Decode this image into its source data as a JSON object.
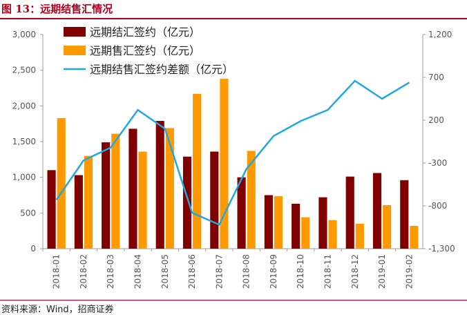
{
  "title": "图 13：远期结售汇情况",
  "source": "资料来源：Wind，招商证券",
  "chart_data": {
    "type": "bar",
    "categories": [
      "2018-01",
      "2018-02",
      "2018-03",
      "2018-04",
      "2018-05",
      "2018-06",
      "2018-07",
      "2018-08",
      "2018-09",
      "2018-10",
      "2018-11",
      "2018-12",
      "2019-01",
      "2019-02"
    ],
    "series": [
      {
        "name": "远期结汇签约（亿元）",
        "color": "#800000",
        "values": [
          1100,
          1030,
          1490,
          1680,
          1790,
          1290,
          1360,
          1000,
          750,
          630,
          720,
          1010,
          1060,
          960
        ]
      },
      {
        "name": "远期售汇签约（亿元）",
        "color": "#ff9900",
        "values": [
          1830,
          1300,
          1610,
          1360,
          1690,
          2170,
          2380,
          1370,
          735,
          440,
          400,
          350,
          610,
          320
        ]
      },
      {
        "name": "远期结售汇签约差额（亿元）",
        "color": "#1fa8e0",
        "type": "line",
        "axis": "y2",
        "values": [
          -730,
          -270,
          -120,
          320,
          100,
          -880,
          -1020,
          -370,
          15,
          190,
          320,
          660,
          450,
          640
        ]
      }
    ],
    "ylim": [
      0,
      3000
    ],
    "yticks": [
      0,
      500,
      {
        "value": 1000,
        "label": "1,000"
      },
      {
        "value": 1500,
        "label": "1,500"
      },
      {
        "value": 2000,
        "label": "2,000"
      },
      {
        "value": 2500,
        "label": "2,500"
      },
      {
        "value": 3000,
        "label": "3,000"
      }
    ],
    "y2lim": [
      -1300,
      1200
    ],
    "y2ticks": [
      {
        "value": -1300,
        "label": "-1,300"
      },
      -800,
      -300,
      200,
      700,
      {
        "value": 1200,
        "label": "1,200"
      }
    ],
    "legend": "upper-left"
  }
}
